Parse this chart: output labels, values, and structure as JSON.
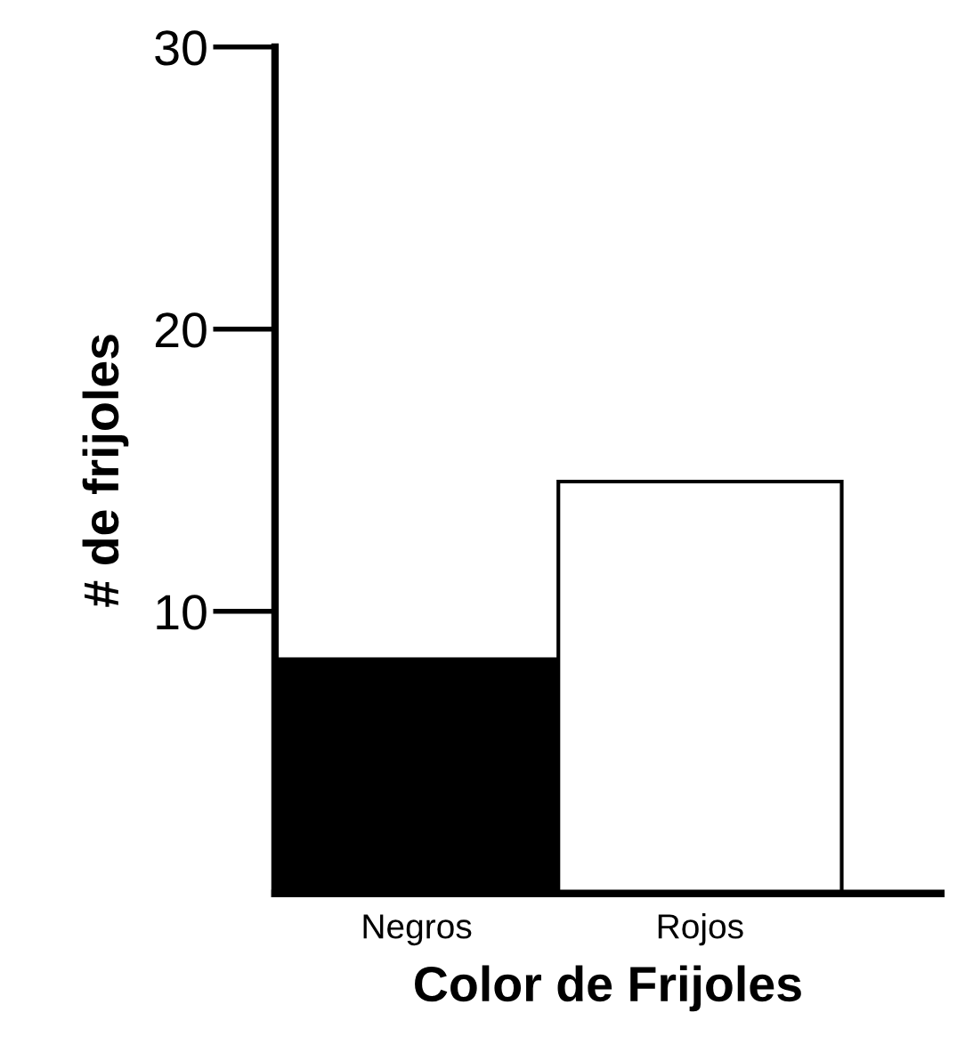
{
  "chart_data": {
    "type": "bar",
    "xlabel": "Color de Frijoles",
    "ylabel": "# de frijoles",
    "categories": [
      "Negros",
      "Rojos"
    ],
    "values": [
      8.3,
      14.6
    ],
    "colors": [
      "#000000",
      "#ffffff"
    ],
    "ylim": [
      0,
      30
    ],
    "yticks": [
      10,
      20,
      30
    ],
    "grid": false
  }
}
